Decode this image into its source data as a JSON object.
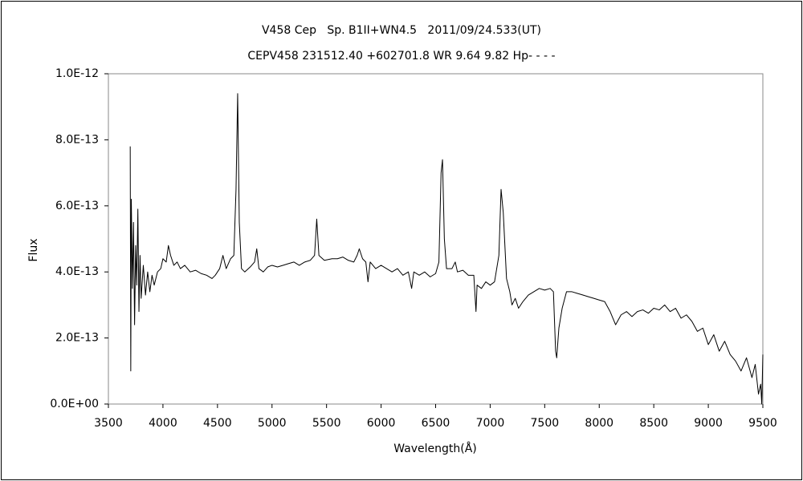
{
  "chart_data": {
    "type": "line",
    "title": "V458 Cep   Sp. B1II+WN4.5   2011/09/24.533(UT)",
    "subtitle": "CEPV458 231512.40 +602701.8 WR 9.64 9.82 Hp- - - -",
    "x_label": "Wavelength(Å)",
    "y_label": "Flux",
    "color": "#000000",
    "xlim": [
      3500,
      9500
    ],
    "xticks": [
      3500,
      4000,
      4500,
      5000,
      5500,
      6000,
      6500,
      7000,
      7500,
      8000,
      8500,
      9000,
      9500
    ],
    "ylim": [
      0,
      1e-12
    ],
    "yticks": [
      {
        "value": 0,
        "label": "0.0E+00"
      },
      {
        "value": 2e-13,
        "label": "2.0E-13"
      },
      {
        "value": 4e-13,
        "label": "4.0E-13"
      },
      {
        "value": 6e-13,
        "label": "6.0E-13"
      },
      {
        "value": 8e-13,
        "label": "8.0E-13"
      },
      {
        "value": 1e-12,
        "label": "1.0E-12"
      }
    ],
    "x": [
      3700,
      3705,
      3710,
      3720,
      3730,
      3740,
      3750,
      3760,
      3770,
      3780,
      3790,
      3800,
      3820,
      3840,
      3860,
      3880,
      3900,
      3920,
      3950,
      3980,
      4000,
      4030,
      4050,
      4070,
      4100,
      4130,
      4160,
      4200,
      4250,
      4300,
      4350,
      4400,
      4450,
      4480,
      4520,
      4550,
      4580,
      4620,
      4650,
      4670,
      4685,
      4700,
      4720,
      4750,
      4800,
      4840,
      4860,
      4880,
      4920,
      4960,
      5000,
      5050,
      5100,
      5150,
      5200,
      5250,
      5300,
      5350,
      5390,
      5410,
      5430,
      5480,
      5550,
      5600,
      5650,
      5700,
      5750,
      5780,
      5800,
      5830,
      5860,
      5880,
      5900,
      5950,
      6000,
      6050,
      6100,
      6150,
      6200,
      6250,
      6280,
      6300,
      6350,
      6400,
      6450,
      6500,
      6530,
      6550,
      6563,
      6580,
      6600,
      6650,
      6680,
      6700,
      6750,
      6800,
      6850,
      6870,
      6880,
      6920,
      6960,
      7000,
      7040,
      7080,
      7100,
      7120,
      7150,
      7180,
      7200,
      7230,
      7260,
      7300,
      7350,
      7400,
      7450,
      7500,
      7550,
      7580,
      7600,
      7610,
      7630,
      7660,
      7700,
      7750,
      7800,
      7850,
      7900,
      7950,
      8000,
      8050,
      8100,
      8150,
      8200,
      8250,
      8300,
      8350,
      8400,
      8450,
      8500,
      8550,
      8600,
      8650,
      8700,
      8750,
      8800,
      8850,
      8900,
      8950,
      9000,
      9050,
      9100,
      9150,
      9200,
      9250,
      9300,
      9350,
      9400,
      9430,
      9460,
      9480,
      9490,
      9500
    ],
    "values": [
      7.8e-13,
      1e-13,
      6.2e-13,
      3.5e-13,
      5.5e-13,
      2.4e-13,
      4.8e-13,
      3.6e-13,
      5.9e-13,
      2.8e-13,
      4.5e-13,
      3.2e-13,
      4.2e-13,
      3.3e-13,
      4e-13,
      3.4e-13,
      3.9e-13,
      3.6e-13,
      4e-13,
      4.1e-13,
      4.4e-13,
      4.3e-13,
      4.8e-13,
      4.5e-13,
      4.2e-13,
      4.3e-13,
      4.1e-13,
      4.2e-13,
      4e-13,
      4.05e-13,
      3.95e-13,
      3.9e-13,
      3.8e-13,
      3.9e-13,
      4.1e-13,
      4.5e-13,
      4.1e-13,
      4.4e-13,
      4.5e-13,
      6.5e-13,
      9.4e-13,
      5.5e-13,
      4.1e-13,
      4e-13,
      4.15e-13,
      4.3e-13,
      4.7e-13,
      4.1e-13,
      4e-13,
      4.15e-13,
      4.2e-13,
      4.15e-13,
      4.2e-13,
      4.25e-13,
      4.3e-13,
      4.2e-13,
      4.3e-13,
      4.35e-13,
      4.5e-13,
      5.6e-13,
      4.5e-13,
      4.35e-13,
      4.4e-13,
      4.4e-13,
      4.45e-13,
      4.35e-13,
      4.3e-13,
      4.5e-13,
      4.7e-13,
      4.4e-13,
      4.3e-13,
      3.7e-13,
      4.3e-13,
      4.1e-13,
      4.2e-13,
      4.1e-13,
      4e-13,
      4.1e-13,
      3.9e-13,
      4e-13,
      3.5e-13,
      4e-13,
      3.9e-13,
      4e-13,
      3.85e-13,
      3.95e-13,
      4.3e-13,
      7e-13,
      7.4e-13,
      5e-13,
      4.1e-13,
      4.1e-13,
      4.3e-13,
      4e-13,
      4.05e-13,
      3.9e-13,
      3.9e-13,
      2.8e-13,
      3.6e-13,
      3.5e-13,
      3.7e-13,
      3.6e-13,
      3.7e-13,
      4.5e-13,
      6.5e-13,
      5.8e-13,
      3.8e-13,
      3.4e-13,
      3e-13,
      3.2e-13,
      2.9e-13,
      3.1e-13,
      3.3e-13,
      3.4e-13,
      3.5e-13,
      3.45e-13,
      3.5e-13,
      3.4e-13,
      1.6e-13,
      1.4e-13,
      2.3e-13,
      2.9e-13,
      3.4e-13,
      3.4e-13,
      3.35e-13,
      3.3e-13,
      3.25e-13,
      3.2e-13,
      3.15e-13,
      3.1e-13,
      2.8e-13,
      2.4e-13,
      2.7e-13,
      2.8e-13,
      2.65e-13,
      2.8e-13,
      2.85e-13,
      2.75e-13,
      2.9e-13,
      2.85e-13,
      3e-13,
      2.8e-13,
      2.9e-13,
      2.6e-13,
      2.7e-13,
      2.5e-13,
      2.2e-13,
      2.3e-13,
      1.8e-13,
      2.1e-13,
      1.6e-13,
      1.9e-13,
      1.5e-13,
      1.3e-13,
      1e-13,
      1.4e-13,
      8e-14,
      1.2e-13,
      3e-14,
      6e-14,
      0,
      1.5e-13
    ]
  }
}
